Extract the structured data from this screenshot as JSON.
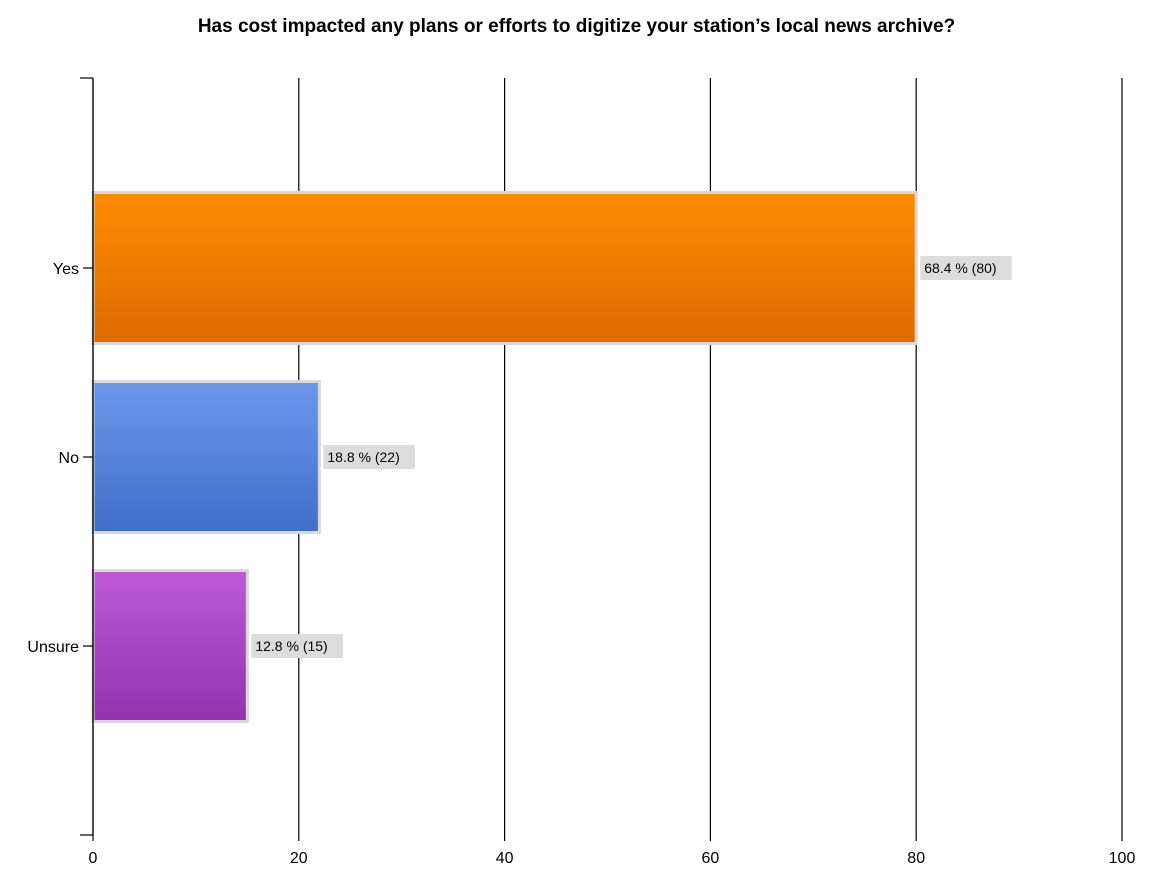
{
  "chart_data": {
    "type": "bar",
    "orientation": "horizontal",
    "title": "Has cost impacted any plans or efforts to digitize your station’s local news archive?",
    "categories": [
      "Yes",
      "No",
      "Unsure"
    ],
    "values": [
      80,
      22,
      15
    ],
    "data_labels": [
      "68.4 % (80)",
      "18.8 % (22)",
      "12.8 % (15)"
    ],
    "colors": [
      {
        "top": "#ff8c00",
        "bottom": "#dd6a00"
      },
      {
        "top": "#6b98ec",
        "bottom": "#3f6fc7"
      },
      {
        "top": "#bf58d8",
        "bottom": "#9233b0"
      }
    ],
    "xlim": [
      0,
      100
    ],
    "xticks": [
      0,
      20,
      40,
      60,
      80,
      100
    ],
    "grid": true,
    "legend": "none"
  }
}
